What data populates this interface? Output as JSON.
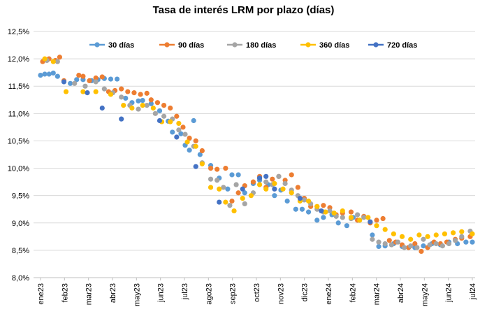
{
  "chart_data": {
    "type": "scatter",
    "title": "Tasa de interés LRM por plazo (días)",
    "xlabel": "",
    "ylabel": "",
    "ylim": [
      8.0,
      12.5
    ],
    "y_ticks": [
      "8,0%",
      "8,5%",
      "9,0%",
      "9,5%",
      "10,0%",
      "10,5%",
      "11,0%",
      "11,5%",
      "12,0%",
      "12,5%"
    ],
    "x_ticks": [
      "ene23",
      "feb23",
      "mar23",
      "abr23",
      "may23",
      "jun23",
      "jul23",
      "ago23",
      "sep23",
      "oct23",
      "nov23",
      "dic23",
      "ene24",
      "feb24",
      "mar24",
      "abr24",
      "may24",
      "jun24",
      "jul24"
    ],
    "legend_position": "top",
    "grid": "horizontal",
    "series": [
      {
        "name": "30 días",
        "color": "#5B9BD5",
        "points": [
          [
            0.0,
            11.7
          ],
          [
            0.2,
            11.72
          ],
          [
            0.4,
            11.72
          ],
          [
            0.6,
            11.74
          ],
          [
            0.8,
            11.68
          ],
          [
            1.4,
            11.55
          ],
          [
            1.7,
            11.62
          ],
          [
            2.0,
            11.62
          ],
          [
            2.4,
            11.6
          ],
          [
            2.7,
            11.62
          ],
          [
            3.0,
            11.64
          ],
          [
            3.3,
            11.63
          ],
          [
            3.6,
            11.63
          ],
          [
            4.0,
            11.28
          ],
          [
            4.3,
            11.2
          ],
          [
            4.6,
            11.23
          ],
          [
            4.8,
            11.24
          ],
          [
            5.2,
            11.18
          ],
          [
            5.6,
            11.05
          ],
          [
            6.0,
            10.86
          ],
          [
            6.2,
            10.66
          ],
          [
            6.6,
            10.63
          ],
          [
            6.8,
            10.42
          ],
          [
            7.0,
            10.33
          ],
          [
            7.2,
            10.87
          ],
          [
            7.5,
            10.25
          ],
          [
            8.0,
            10.05
          ],
          [
            8.4,
            9.82
          ],
          [
            8.8,
            9.62
          ],
          [
            9.0,
            9.88
          ],
          [
            9.3,
            9.88
          ],
          [
            9.6,
            9.55
          ],
          [
            10.0,
            9.72
          ],
          [
            10.3,
            9.78
          ],
          [
            10.7,
            9.7
          ],
          [
            11.0,
            9.5
          ],
          [
            11.3,
            9.6
          ],
          [
            11.6,
            9.4
          ],
          [
            12.0,
            9.25
          ],
          [
            12.3,
            9.25
          ],
          [
            12.6,
            9.2
          ],
          [
            13.0,
            9.05
          ],
          [
            13.3,
            9.1
          ],
          [
            13.7,
            9.15
          ],
          [
            14.0,
            9.0
          ],
          [
            14.4,
            8.95
          ],
          [
            14.7,
            9.1
          ],
          [
            15.0,
            9.05
          ],
          [
            15.6,
            8.78
          ],
          [
            15.9,
            8.57
          ],
          [
            16.2,
            8.58
          ],
          [
            16.6,
            8.62
          ],
          [
            17.0,
            8.57
          ],
          [
            17.3,
            8.55
          ],
          [
            17.6,
            8.55
          ],
          [
            18.0,
            8.58
          ],
          [
            18.4,
            8.62
          ],
          [
            18.8,
            8.6
          ],
          [
            19.2,
            8.65
          ],
          [
            19.6,
            8.62
          ],
          [
            20.0,
            8.65
          ],
          [
            20.3,
            8.65
          ]
        ]
      },
      {
        "name": "90 días",
        "color": "#ED7D31",
        "points": [
          [
            0.1,
            11.95
          ],
          [
            0.4,
            12.0
          ],
          [
            0.7,
            11.97
          ],
          [
            0.9,
            12.03
          ],
          [
            1.1,
            11.6
          ],
          [
            1.8,
            11.7
          ],
          [
            2.0,
            11.68
          ],
          [
            2.3,
            11.6
          ],
          [
            2.6,
            11.65
          ],
          [
            2.9,
            11.67
          ],
          [
            3.2,
            11.4
          ],
          [
            3.5,
            11.42
          ],
          [
            3.8,
            11.45
          ],
          [
            4.1,
            11.4
          ],
          [
            4.4,
            11.38
          ],
          [
            4.7,
            11.35
          ],
          [
            5.0,
            11.37
          ],
          [
            5.2,
            11.25
          ],
          [
            5.5,
            11.2
          ],
          [
            5.8,
            11.15
          ],
          [
            6.1,
            11.1
          ],
          [
            6.4,
            10.95
          ],
          [
            6.7,
            10.75
          ],
          [
            7.0,
            10.55
          ],
          [
            7.3,
            10.5
          ],
          [
            7.6,
            10.32
          ],
          [
            8.0,
            10.0
          ],
          [
            8.3,
            9.98
          ],
          [
            8.7,
            10.0
          ],
          [
            9.0,
            9.4
          ],
          [
            9.3,
            9.55
          ],
          [
            9.6,
            9.68
          ],
          [
            10.0,
            9.75
          ],
          [
            10.3,
            9.85
          ],
          [
            10.6,
            9.65
          ],
          [
            10.9,
            9.8
          ],
          [
            11.2,
            9.85
          ],
          [
            11.5,
            9.78
          ],
          [
            11.8,
            9.88
          ],
          [
            12.1,
            9.65
          ],
          [
            12.4,
            9.45
          ],
          [
            12.7,
            9.3
          ],
          [
            13.0,
            9.3
          ],
          [
            13.3,
            9.32
          ],
          [
            13.6,
            9.28
          ],
          [
            13.9,
            9.15
          ],
          [
            14.2,
            9.18
          ],
          [
            14.6,
            9.2
          ],
          [
            14.9,
            9.05
          ],
          [
            15.2,
            9.12
          ],
          [
            15.5,
            9.0
          ],
          [
            15.8,
            9.05
          ],
          [
            16.1,
            9.08
          ],
          [
            16.4,
            8.68
          ],
          [
            16.7,
            8.65
          ],
          [
            17.0,
            8.6
          ],
          [
            17.3,
            8.55
          ],
          [
            17.6,
            8.62
          ],
          [
            17.9,
            8.48
          ],
          [
            18.2,
            8.55
          ],
          [
            18.5,
            8.65
          ],
          [
            18.8,
            8.62
          ],
          [
            19.1,
            8.65
          ],
          [
            19.5,
            8.7
          ],
          [
            19.8,
            8.72
          ],
          [
            20.2,
            8.75
          ]
        ]
      },
      {
        "name": "180 días",
        "color": "#A5A5A5",
        "points": [
          [
            0.3,
            11.97
          ],
          [
            0.8,
            11.95
          ],
          [
            1.6,
            11.55
          ],
          [
            2.1,
            11.5
          ],
          [
            2.6,
            11.58
          ],
          [
            3.0,
            11.45
          ],
          [
            3.4,
            11.38
          ],
          [
            3.8,
            11.3
          ],
          [
            4.2,
            11.15
          ],
          [
            4.6,
            11.08
          ],
          [
            5.0,
            11.15
          ],
          [
            5.4,
            11.0
          ],
          [
            5.8,
            10.95
          ],
          [
            6.2,
            10.9
          ],
          [
            6.5,
            10.7
          ],
          [
            6.8,
            10.62
          ],
          [
            7.2,
            10.4
          ],
          [
            7.6,
            10.1
          ],
          [
            8.0,
            9.8
          ],
          [
            8.3,
            9.78
          ],
          [
            8.6,
            9.65
          ],
          [
            8.9,
            9.32
          ],
          [
            9.2,
            9.7
          ],
          [
            9.6,
            9.35
          ],
          [
            10.0,
            9.55
          ],
          [
            10.3,
            9.82
          ],
          [
            10.6,
            9.75
          ],
          [
            10.9,
            9.7
          ],
          [
            11.2,
            9.85
          ],
          [
            11.5,
            9.72
          ],
          [
            11.8,
            9.6
          ],
          [
            12.1,
            9.5
          ],
          [
            12.4,
            9.42
          ],
          [
            12.7,
            9.35
          ],
          [
            13.0,
            9.25
          ],
          [
            13.3,
            9.2
          ],
          [
            13.6,
            9.22
          ],
          [
            13.9,
            9.12
          ],
          [
            14.2,
            9.1
          ],
          [
            14.6,
            9.08
          ],
          [
            14.9,
            9.15
          ],
          [
            15.2,
            9.1
          ],
          [
            15.6,
            8.7
          ],
          [
            15.9,
            8.65
          ],
          [
            16.2,
            8.62
          ],
          [
            16.5,
            8.6
          ],
          [
            16.8,
            8.65
          ],
          [
            17.1,
            8.55
          ],
          [
            17.4,
            8.58
          ],
          [
            17.7,
            8.55
          ],
          [
            18.0,
            8.7
          ],
          [
            18.3,
            8.6
          ],
          [
            18.6,
            8.62
          ],
          [
            18.9,
            8.58
          ],
          [
            19.2,
            8.62
          ],
          [
            19.5,
            8.68
          ],
          [
            19.8,
            8.75
          ],
          [
            20.2,
            8.85
          ]
        ]
      },
      {
        "name": "360 días",
        "color": "#FFC000",
        "points": [
          [
            0.2,
            12.0
          ],
          [
            0.6,
            11.95
          ],
          [
            1.2,
            11.4
          ],
          [
            2.0,
            11.4
          ],
          [
            2.6,
            11.4
          ],
          [
            3.3,
            11.35
          ],
          [
            3.9,
            11.15
          ],
          [
            4.3,
            11.1
          ],
          [
            4.8,
            11.15
          ],
          [
            5.3,
            11.1
          ],
          [
            5.7,
            10.85
          ],
          [
            6.1,
            10.85
          ],
          [
            6.5,
            10.82
          ],
          [
            6.9,
            10.48
          ],
          [
            7.3,
            10.4
          ],
          [
            7.6,
            10.08
          ],
          [
            8.0,
            9.65
          ],
          [
            8.4,
            9.62
          ],
          [
            8.7,
            9.38
          ],
          [
            9.1,
            9.22
          ],
          [
            9.5,
            9.45
          ],
          [
            9.9,
            9.5
          ],
          [
            10.3,
            9.7
          ],
          [
            10.6,
            9.62
          ],
          [
            11.0,
            9.72
          ],
          [
            11.4,
            9.62
          ],
          [
            11.8,
            9.55
          ],
          [
            12.2,
            9.4
          ],
          [
            12.6,
            9.4
          ],
          [
            13.0,
            9.3
          ],
          [
            13.4,
            9.2
          ],
          [
            13.8,
            9.18
          ],
          [
            14.2,
            9.22
          ],
          [
            14.6,
            9.1
          ],
          [
            15.0,
            9.05
          ],
          [
            15.4,
            9.1
          ],
          [
            15.8,
            8.95
          ],
          [
            16.2,
            8.88
          ],
          [
            16.6,
            8.8
          ],
          [
            17.0,
            8.75
          ],
          [
            17.4,
            8.7
          ],
          [
            17.8,
            8.78
          ],
          [
            18.2,
            8.75
          ],
          [
            18.6,
            8.78
          ],
          [
            19.0,
            8.8
          ],
          [
            19.4,
            8.82
          ],
          [
            19.8,
            8.84
          ],
          [
            20.3,
            8.8
          ]
        ]
      },
      {
        "name": "720 días",
        "color": "#4472C4",
        "points": [
          [
            1.1,
            11.58
          ],
          [
            2.2,
            11.38
          ],
          [
            2.9,
            11.1
          ],
          [
            3.8,
            10.9
          ],
          [
            5.6,
            10.87
          ],
          [
            6.4,
            10.57
          ],
          [
            7.3,
            10.03
          ],
          [
            8.4,
            9.38
          ],
          [
            9.5,
            9.62
          ],
          [
            10.3,
            9.82
          ],
          [
            10.6,
            9.85
          ],
          [
            11.0,
            9.62
          ],
          [
            12.2,
            9.45
          ],
          [
            13.2,
            9.22
          ],
          [
            15.5,
            9.02
          ]
        ]
      }
    ]
  }
}
